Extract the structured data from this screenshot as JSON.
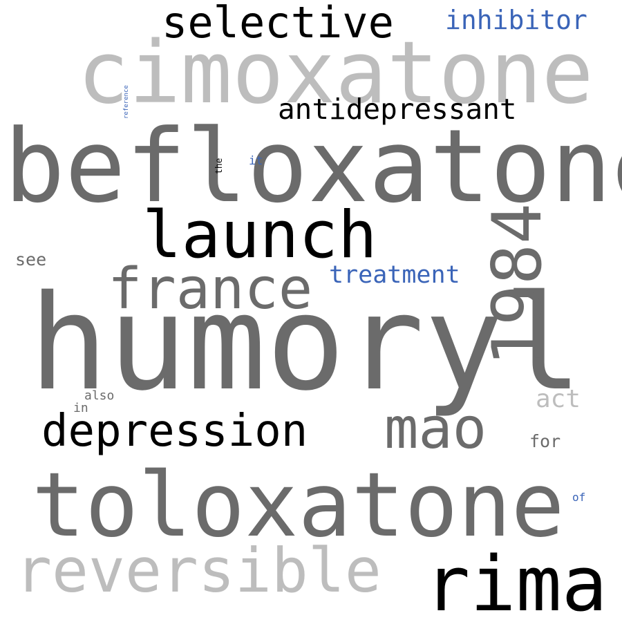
{
  "colors": {
    "background": "#ffffff",
    "black": "#000000",
    "dark_gray": "#6b6b6b",
    "light_gray": "#bdbdbd",
    "blue": "#3a64b8"
  },
  "words": {
    "humoryl": "humoryl",
    "befloxatone": "befloxatone",
    "toloxatone": "toloxatone",
    "cimoxatone": "cimoxatone",
    "launch": "launch",
    "rima": "rima",
    "reversible": "reversible",
    "selective": "selective",
    "depression": "depression",
    "mao": "mao",
    "france": "france",
    "year_1984": "1984",
    "antidepressant": "antidepressant",
    "inhibitor": "inhibitor",
    "treatment": "treatment",
    "act": "act",
    "see": "see",
    "for": "for",
    "also": "also",
    "in": "in",
    "it": "it",
    "of": "of",
    "the": "the",
    "reference": "reference",
    "dash": "-"
  }
}
